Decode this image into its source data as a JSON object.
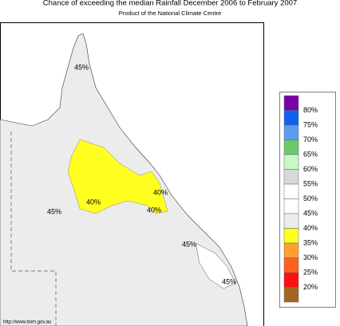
{
  "title": "Chance of exceeding the median Rainfall December 2006 to February 2007",
  "subtitle": "Product of the National Climate Centre",
  "source_url": "http://www.bom.gov.au",
  "map_labels": [
    "45%",
    "40%",
    "40%",
    "40%",
    "45%",
    "45%",
    "45%"
  ],
  "legend": {
    "labels": [
      "80%",
      "75%",
      "70%",
      "65%",
      "60%",
      "55%",
      "50%",
      "45%",
      "40%",
      "35%",
      "30%",
      "25%",
      "20%"
    ],
    "colors": [
      "#7a00a8",
      "#1060f0",
      "#5c9cf0",
      "#6cc86c",
      "#c8f8c8",
      "#d8d8d8",
      "#ffffff",
      "#ffffff",
      "#ececec",
      "#ffff20",
      "#ffa030",
      "#ff6020",
      "#ff1010",
      "#a06820"
    ]
  }
}
